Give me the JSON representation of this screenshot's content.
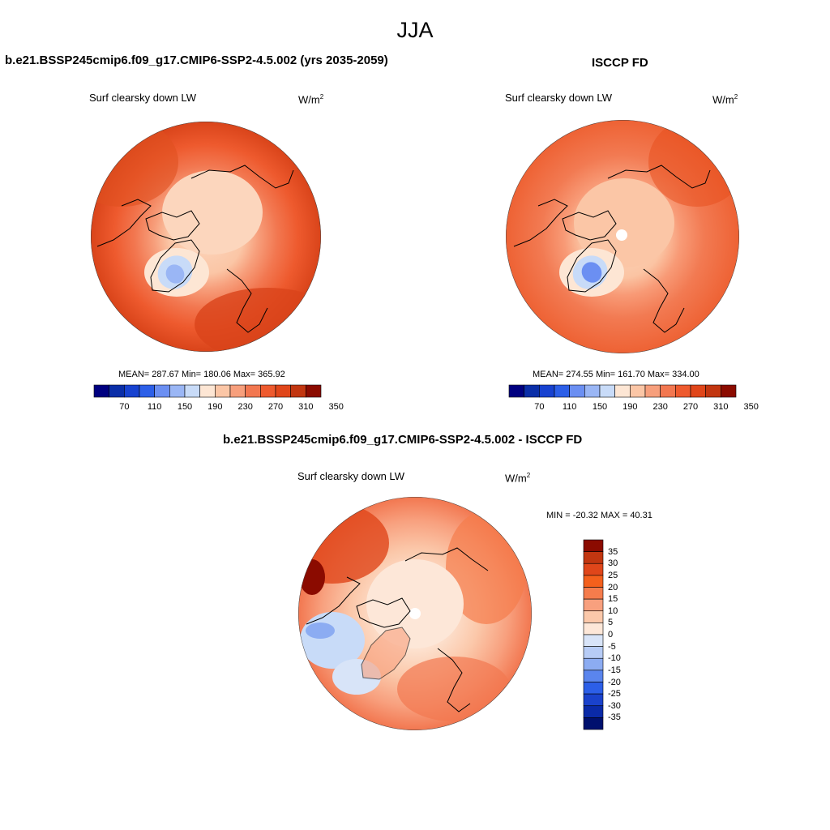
{
  "title": "JJA",
  "panels": {
    "model": {
      "title": "b.e21.BSSP245cmip6.f09_g17.CMIP6-SSP2-4.5.002 (yrs 2035-2059)",
      "variable": "Surf clearsky down LW",
      "unit_base": "W/m",
      "unit_exp": "2",
      "stats": "MEAN= 287.67  Min= 180.06  Max= 365.92"
    },
    "obs": {
      "title": "ISCCP FD",
      "variable": "Surf clearsky down LW",
      "unit_base": "W/m",
      "unit_exp": "2",
      "stats": "MEAN= 274.55  Min= 161.70  Max= 334.00"
    },
    "diff": {
      "title": "b.e21.BSSP245cmip6.f09_g17.CMIP6-SSP2-4.5.002 - ISCCP FD",
      "variable": "Surf clearsky down LW",
      "unit_base": "W/m",
      "unit_exp": "2",
      "stats": "MIN = -20.32 MAX =  40.31"
    }
  },
  "colorbar_abs": {
    "colors": [
      "#000080",
      "#0a2ea8",
      "#1742d0",
      "#2c5fe8",
      "#6b8ff2",
      "#9ab6f5",
      "#c8dbf8",
      "#fde6d4",
      "#fbc6a6",
      "#f79f7c",
      "#f27750",
      "#ee5a2e",
      "#e0461a",
      "#c23610",
      "#8b0b00"
    ],
    "tick_labels": [
      "70",
      "110",
      "150",
      "190",
      "230",
      "270",
      "310",
      "350"
    ]
  },
  "colorbar_diff": {
    "colors": [
      "#8b0b00",
      "#c23610",
      "#e0461a",
      "#f4601c",
      "#f57c4c",
      "#f8a07e",
      "#fbc8aa",
      "#fde7d8",
      "#d8e4f8",
      "#b7ccf6",
      "#8cacf2",
      "#5a85ee",
      "#2c5fe8",
      "#1a42cc",
      "#0a2aa8",
      "#00106e"
    ],
    "tick_labels": [
      "35",
      "30",
      "25",
      "20",
      "15",
      "10",
      "5",
      "0",
      "-5",
      "-10",
      "-15",
      "-20",
      "-25",
      "-30",
      "-35"
    ]
  },
  "colors": {
    "land_outline": "#000000",
    "ocean_mid": "#ee5a2e",
    "polar_light": "#fbc8aa",
    "greenland_low": "#9ab6f5"
  }
}
